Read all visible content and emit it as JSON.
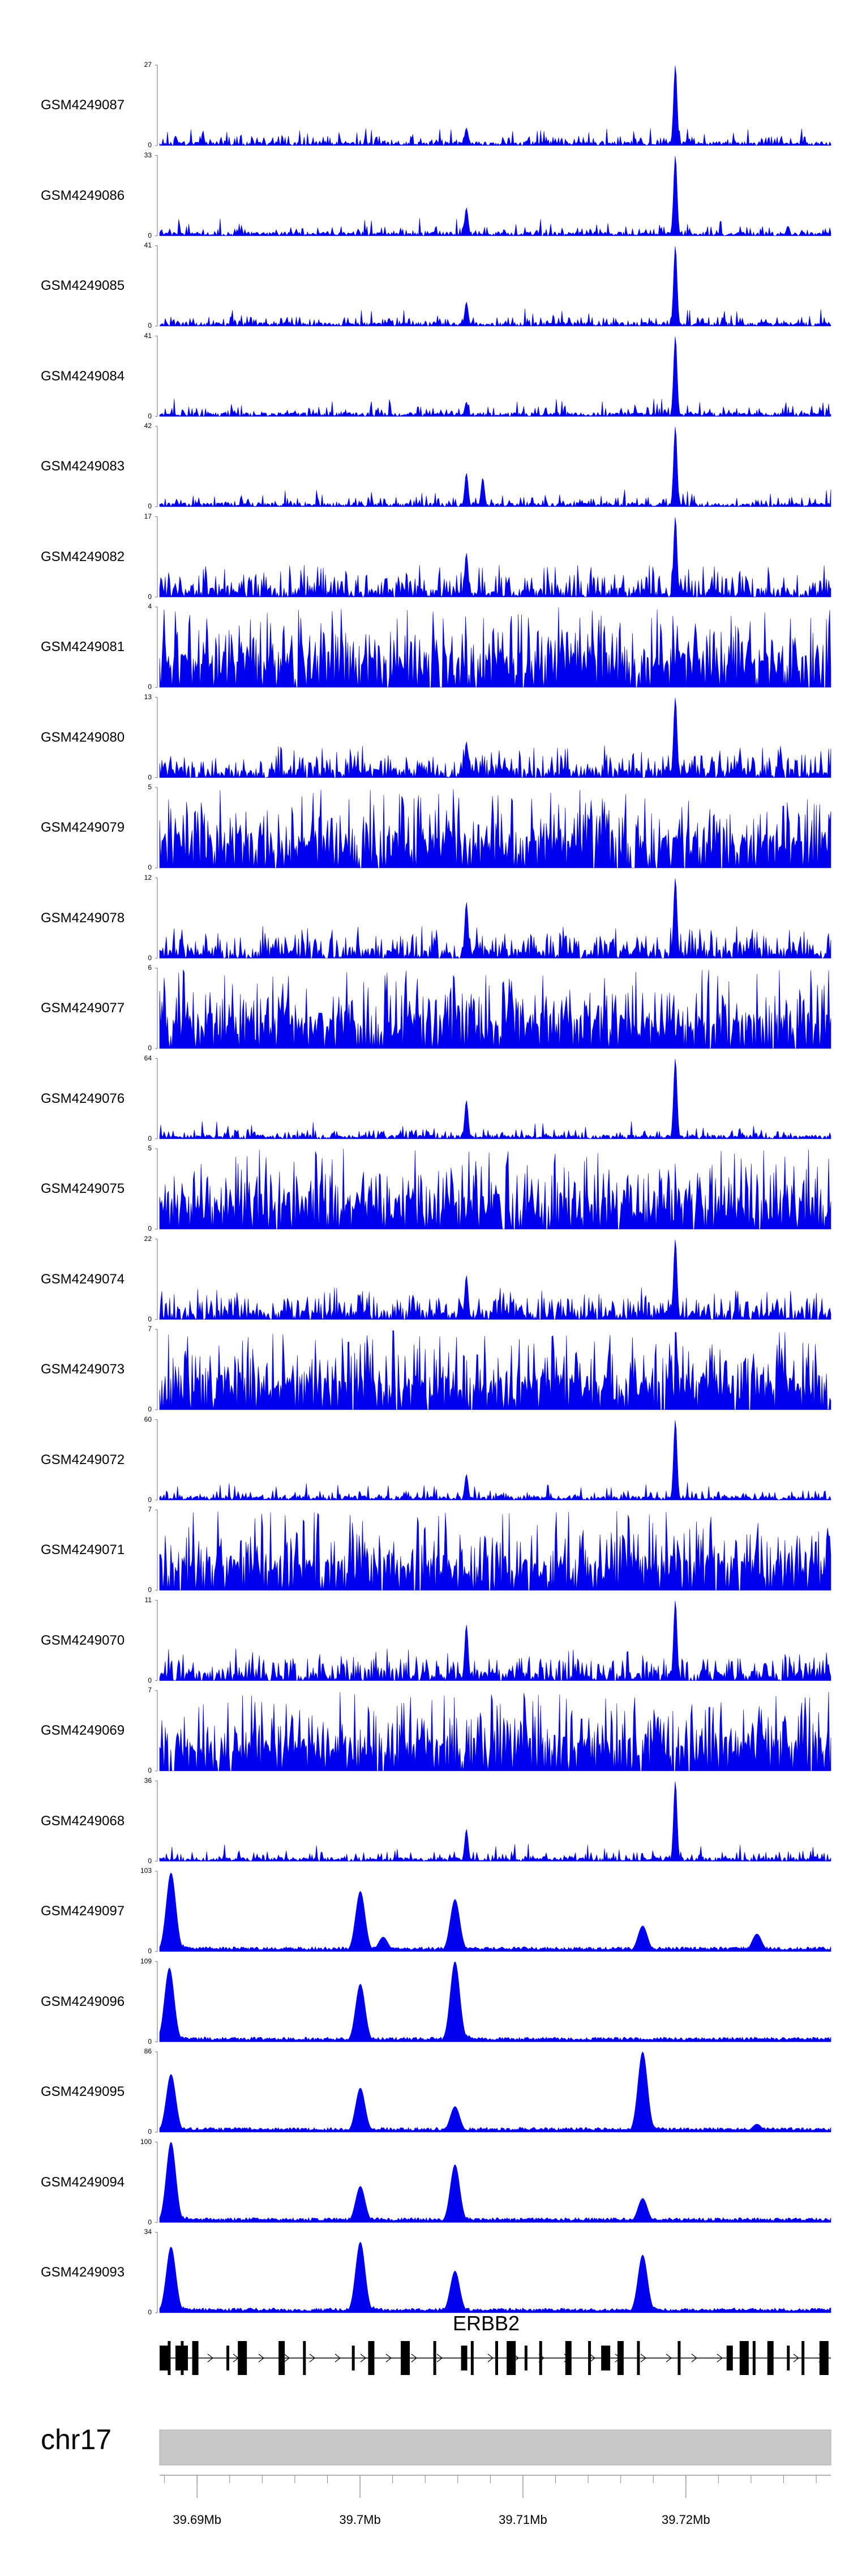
{
  "chart_data": {
    "type": "area",
    "fill_color": "#0000ee",
    "axis_color": "#888888",
    "region_color": "#c8c8c8",
    "chromosome": "chr17",
    "x_range_mb": [
      39.6877,
      39.7289
    ],
    "x_ticks": [
      {
        "value": 39.69,
        "label": "39.69Mb"
      },
      {
        "value": 39.7,
        "label": "39.7Mb"
      },
      {
        "value": 39.71,
        "label": "39.71Mb"
      },
      {
        "value": 39.72,
        "label": "39.72Mb"
      }
    ],
    "gene": {
      "name": "ERBB2",
      "strand": "+",
      "exons_mb": [
        39.6877,
        39.6882,
        39.689,
        39.6897,
        39.6918,
        39.6925,
        39.695,
        39.6965,
        39.6995,
        39.7005,
        39.7025,
        39.7045,
        39.7062,
        39.7068,
        39.7083,
        39.709,
        39.7101,
        39.711,
        39.7126,
        39.714,
        39.7148,
        39.7158,
        39.717,
        39.7195,
        39.7225,
        39.7233,
        39.7241,
        39.725,
        39.7262,
        39.7271,
        39.7282
      ]
    },
    "series": [
      {
        "label": "GSM4249087",
        "ymax": 27,
        "ymin": 0,
        "profile": "peaky",
        "peaks": [
          [
            39.7065,
            0.22
          ],
          [
            39.7193,
            1.0
          ]
        ]
      },
      {
        "label": "GSM4249086",
        "ymax": 33,
        "ymin": 0,
        "profile": "peaky",
        "peaks": [
          [
            39.7065,
            0.35
          ],
          [
            39.7193,
            1.0
          ]
        ]
      },
      {
        "label": "GSM4249085",
        "ymax": 41,
        "ymin": 0,
        "profile": "peaky",
        "peaks": [
          [
            39.7065,
            0.3
          ],
          [
            39.7193,
            1.0
          ]
        ]
      },
      {
        "label": "GSM4249084",
        "ymax": 41,
        "ymin": 0,
        "profile": "peaky",
        "peaks": [
          [
            39.7065,
            0.18
          ],
          [
            39.7193,
            1.0
          ]
        ]
      },
      {
        "label": "GSM4249083",
        "ymax": 42,
        "ymin": 0,
        "profile": "peaky",
        "peaks": [
          [
            39.7065,
            0.42
          ],
          [
            39.7075,
            0.36
          ],
          [
            39.7193,
            1.0
          ]
        ]
      },
      {
        "label": "GSM4249082",
        "ymax": 17,
        "ymin": 0,
        "profile": "noisy",
        "peaks": [
          [
            39.7065,
            0.55
          ],
          [
            39.7193,
            1.0
          ]
        ]
      },
      {
        "label": "GSM4249081",
        "ymax": 4,
        "ymin": 0,
        "profile": "dense",
        "peaks": []
      },
      {
        "label": "GSM4249080",
        "ymax": 13,
        "ymin": 0,
        "profile": "noisy",
        "peaks": [
          [
            39.7065,
            0.45
          ],
          [
            39.7193,
            1.0
          ]
        ]
      },
      {
        "label": "GSM4249079",
        "ymax": 5,
        "ymin": 0,
        "profile": "dense",
        "peaks": []
      },
      {
        "label": "GSM4249078",
        "ymax": 12,
        "ymin": 0,
        "profile": "noisy",
        "peaks": [
          [
            39.7065,
            0.7
          ],
          [
            39.7193,
            1.0
          ]
        ]
      },
      {
        "label": "GSM4249077",
        "ymax": 6,
        "ymin": 0,
        "profile": "dense",
        "peaks": []
      },
      {
        "label": "GSM4249076",
        "ymax": 64,
        "ymin": 0,
        "profile": "peaky",
        "peaks": [
          [
            39.7065,
            0.48
          ],
          [
            39.7193,
            1.0
          ]
        ]
      },
      {
        "label": "GSM4249075",
        "ymax": 5,
        "ymin": 0,
        "profile": "dense",
        "peaks": []
      },
      {
        "label": "GSM4249074",
        "ymax": 22,
        "ymin": 0,
        "profile": "noisy",
        "peaks": [
          [
            39.7065,
            0.55
          ],
          [
            39.7193,
            1.0
          ]
        ]
      },
      {
        "label": "GSM4249073",
        "ymax": 7,
        "ymin": 0,
        "profile": "dense",
        "peaks": []
      },
      {
        "label": "GSM4249072",
        "ymax": 60,
        "ymin": 0,
        "profile": "peaky",
        "peaks": [
          [
            39.7065,
            0.32
          ],
          [
            39.7193,
            1.0
          ]
        ]
      },
      {
        "label": "GSM4249071",
        "ymax": 7,
        "ymin": 0,
        "profile": "dense",
        "peaks": []
      },
      {
        "label": "GSM4249070",
        "ymax": 11,
        "ymin": 0,
        "profile": "noisy",
        "peaks": [
          [
            39.7065,
            0.7
          ],
          [
            39.7193,
            1.0
          ]
        ]
      },
      {
        "label": "GSM4249069",
        "ymax": 7,
        "ymin": 0,
        "profile": "dense",
        "peaks": []
      },
      {
        "label": "GSM4249068",
        "ymax": 36,
        "ymin": 0,
        "profile": "peaky",
        "peaks": [
          [
            39.7065,
            0.4
          ],
          [
            39.7193,
            1.0
          ]
        ]
      },
      {
        "label": "GSM4249097",
        "ymax": 103,
        "ymin": 0,
        "profile": "smooth",
        "peaks": [
          [
            39.6884,
            0.98
          ],
          [
            39.7,
            0.75
          ],
          [
            39.7014,
            0.18
          ],
          [
            39.7058,
            0.65
          ],
          [
            39.7173,
            0.32
          ],
          [
            39.7243,
            0.22
          ]
        ]
      },
      {
        "label": "GSM4249096",
        "ymax": 109,
        "ymin": 0,
        "profile": "smooth",
        "peaks": [
          [
            39.6883,
            0.92
          ],
          [
            39.7,
            0.72
          ],
          [
            39.7058,
            1.0
          ]
        ]
      },
      {
        "label": "GSM4249095",
        "ymax": 86,
        "ymin": 0,
        "profile": "smooth",
        "peaks": [
          [
            39.6884,
            0.72
          ],
          [
            39.7,
            0.55
          ],
          [
            39.7058,
            0.32
          ],
          [
            39.7173,
            1.0
          ],
          [
            39.7243,
            0.1
          ]
        ]
      },
      {
        "label": "GSM4249094",
        "ymax": 100,
        "ymin": 0,
        "profile": "smooth",
        "peaks": [
          [
            39.6884,
            1.0
          ],
          [
            39.7,
            0.45
          ],
          [
            39.7058,
            0.72
          ],
          [
            39.7173,
            0.3
          ]
        ]
      },
      {
        "label": "GSM4249093",
        "ymax": 34,
        "ymin": 0,
        "profile": "smooth",
        "peaks": [
          [
            39.6884,
            0.82
          ],
          [
            39.7,
            0.88
          ],
          [
            39.7058,
            0.52
          ],
          [
            39.7173,
            0.72
          ]
        ]
      }
    ]
  }
}
